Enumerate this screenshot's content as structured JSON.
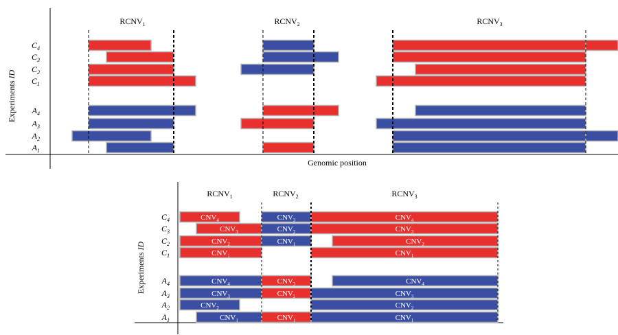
{
  "colors": {
    "red": "#e8312e",
    "blue": "#3a4fa3",
    "outline": "#b5b5b5"
  },
  "top_diagram": {
    "y_axis_label_main": "Experiments ",
    "y_axis_label_italic": "ID",
    "x_axis_label": "Genomic position",
    "regions": [
      {
        "base": "RCNV",
        "sub": "1"
      },
      {
        "base": "RCNV",
        "sub": "2"
      },
      {
        "base": "RCNV",
        "sub": "3"
      }
    ],
    "rows": [
      {
        "base": "C",
        "sub": "4"
      },
      {
        "base": "C",
        "sub": "3"
      },
      {
        "base": "C",
        "sub": "2"
      },
      {
        "base": "C",
        "sub": "1"
      },
      {
        "base": "A",
        "sub": "4"
      },
      {
        "base": "A",
        "sub": "3"
      },
      {
        "base": "A",
        "sub": "2"
      },
      {
        "base": "A",
        "sub": "1"
      }
    ]
  },
  "bottom_diagram": {
    "y_axis_label_main": "Experiments ",
    "y_axis_label_italic": "ID",
    "regions": [
      {
        "base": "RCNV",
        "sub": "1"
      },
      {
        "base": "RCNV",
        "sub": "2"
      },
      {
        "base": "RCNV",
        "sub": "3"
      }
    ],
    "rows": [
      {
        "base": "C",
        "sub": "4"
      },
      {
        "base": "C",
        "sub": "3"
      },
      {
        "base": "C",
        "sub": "2"
      },
      {
        "base": "C",
        "sub": "1"
      },
      {
        "base": "A",
        "sub": "4"
      },
      {
        "base": "A",
        "sub": "3"
      },
      {
        "base": "A",
        "sub": "2"
      },
      {
        "base": "A",
        "sub": "1"
      }
    ],
    "cnv_labels": {
      "C4": [
        {
          "base": "CNV",
          "sub": "4"
        },
        {
          "base": "CNV",
          "sub": "3"
        },
        {
          "base": "CNV",
          "sub": "4"
        }
      ],
      "C3": [
        {
          "base": "CNV",
          "sub": "3"
        },
        {
          "base": "CNV",
          "sub": "2"
        },
        {
          "base": "CNV",
          "sub": "3"
        }
      ],
      "C2": [
        {
          "base": "CNV",
          "sub": "2"
        },
        {
          "base": "CNV",
          "sub": "1"
        },
        {
          "base": "CNV",
          "sub": "2"
        }
      ],
      "C1": [
        {
          "base": "CNV",
          "sub": "1"
        },
        {
          "base": "CNV",
          "sub": "1"
        }
      ],
      "A4": [
        {
          "base": "CNV",
          "sub": "4"
        },
        {
          "base": "CNV",
          "sub": "3"
        },
        {
          "base": "CNV",
          "sub": "4"
        }
      ],
      "A3": [
        {
          "base": "CNV",
          "sub": "3"
        },
        {
          "base": "CNV",
          "sub": "2"
        },
        {
          "base": "CNV",
          "sub": "3"
        }
      ],
      "A2": [
        {
          "base": "CNV",
          "sub": "2"
        },
        {
          "base": "CNV",
          "sub": "2"
        }
      ],
      "A1": [
        {
          "base": "CNV",
          "sub": "1"
        },
        {
          "base": "CNV",
          "sub": "1"
        },
        {
          "base": "CNV",
          "sub": "1"
        }
      ]
    }
  }
}
